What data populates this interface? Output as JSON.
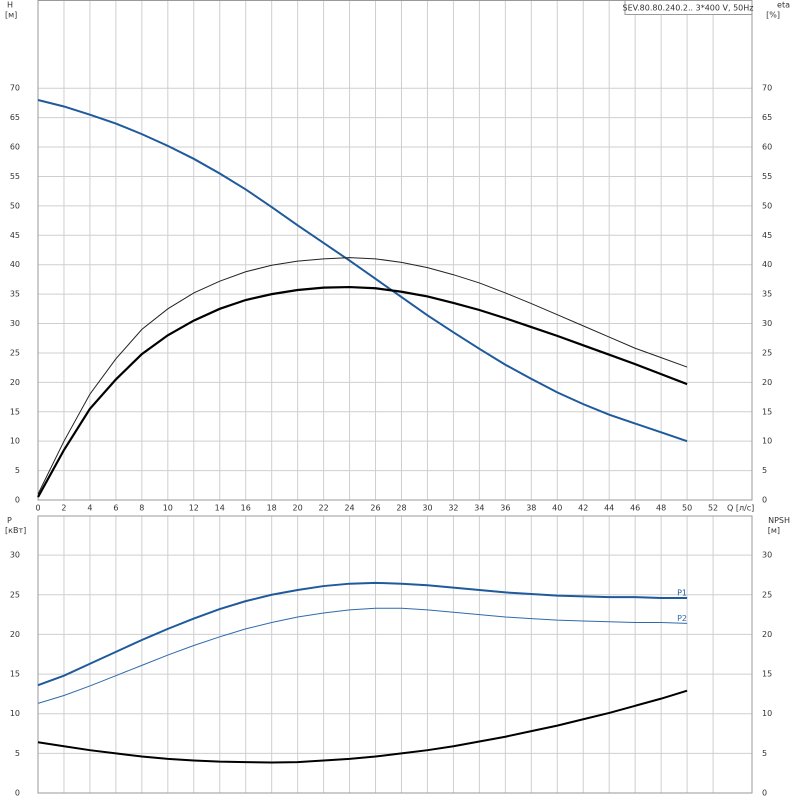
{
  "chart_data": [
    {
      "type": "line",
      "title": "SEV.80.80.240.2.. 3*400 V, 50Hz",
      "y_label": "H",
      "y_unit": "[м]",
      "y2_label": "eta",
      "y2_unit": "[%]",
      "x_label": "Q [л/с]",
      "xlim": [
        0,
        55
      ],
      "xticks": [
        0,
        2,
        4,
        6,
        8,
        10,
        12,
        14,
        16,
        18,
        20,
        22,
        24,
        26,
        28,
        30,
        32,
        34,
        36,
        38,
        40,
        42,
        44,
        46,
        48,
        50,
        52
      ],
      "ylim": [
        0,
        85
      ],
      "yticks": [
        0,
        5,
        10,
        15,
        20,
        25,
        30,
        35,
        40,
        45,
        50,
        55,
        60,
        65,
        70
      ],
      "y2lim": [
        0,
        85
      ],
      "y2ticks": [
        0,
        5,
        10,
        15,
        20,
        25,
        30,
        35,
        40,
        45,
        50,
        55,
        60,
        65,
        70
      ],
      "grid": true,
      "x": [
        0,
        2,
        4,
        6,
        8,
        10,
        12,
        14,
        16,
        18,
        20,
        22,
        24,
        26,
        28,
        30,
        32,
        34,
        36,
        38,
        40,
        42,
        44,
        46,
        48,
        50
      ],
      "series": [
        {
          "color": "#1f5a9c",
          "width": 2,
          "values": [
            68,
            66.9,
            65.5,
            64,
            62.2,
            60.2,
            58,
            55.5,
            52.8,
            49.8,
            46.7,
            43.7,
            40.7,
            37.6,
            34.5,
            31.4,
            28.5,
            25.7,
            23,
            20.6,
            18.3,
            16.3,
            14.5,
            13,
            11.5,
            10
          ]
        },
        {
          "color": "#222222",
          "width": 1,
          "axis": "y2",
          "values": [
            1,
            10,
            18,
            24,
            29,
            32.5,
            35.2,
            37.2,
            38.8,
            39.9,
            40.6,
            41,
            41.2,
            41,
            40.4,
            39.5,
            38.3,
            36.9,
            35.2,
            33.4,
            31.5,
            29.6,
            27.7,
            25.8,
            24.2,
            22.6
          ]
        },
        {
          "color": "#000000",
          "width": 2.2,
          "axis": "y2",
          "values": [
            0.5,
            8.5,
            15.5,
            20.5,
            24.8,
            28,
            30.5,
            32.5,
            34,
            35,
            35.7,
            36.1,
            36.2,
            36,
            35.4,
            34.6,
            33.5,
            32.3,
            30.9,
            29.4,
            27.9,
            26.3,
            24.7,
            23.1,
            21.4,
            19.7
          ]
        }
      ]
    },
    {
      "type": "line",
      "y_label": "P",
      "y_unit": "[кВт]",
      "y2_label": "NPSH",
      "y2_unit": "[м]",
      "xlim": [
        0,
        55
      ],
      "xticks": [
        0,
        2,
        4,
        6,
        8,
        10,
        12,
        14,
        16,
        18,
        20,
        22,
        24,
        26,
        28,
        30,
        32,
        34,
        36,
        38,
        40,
        42,
        44,
        46,
        48,
        50,
        52
      ],
      "ylim": [
        0,
        35
      ],
      "yticks": [
        0,
        5,
        10,
        15,
        20,
        25,
        30
      ],
      "y2lim": [
        0,
        35
      ],
      "y2ticks": [
        0,
        5,
        10,
        15,
        20,
        25,
        30
      ],
      "grid": true,
      "x": [
        0,
        2,
        4,
        6,
        8,
        10,
        12,
        14,
        16,
        18,
        20,
        22,
        24,
        26,
        28,
        30,
        32,
        34,
        36,
        38,
        40,
        42,
        44,
        46,
        48,
        50
      ],
      "series": [
        {
          "name": "P1",
          "color": "#1f5a9c",
          "width": 2,
          "values": [
            13.6,
            14.8,
            16.3,
            17.8,
            19.3,
            20.7,
            22,
            23.2,
            24.2,
            25,
            25.6,
            26.1,
            26.4,
            26.5,
            26.4,
            26.2,
            25.9,
            25.6,
            25.3,
            25.1,
            24.9,
            24.8,
            24.7,
            24.7,
            24.6,
            24.6
          ]
        },
        {
          "name": "P2",
          "color": "#2f6aac",
          "width": 1,
          "values": [
            11.3,
            12.3,
            13.5,
            14.8,
            16.1,
            17.4,
            18.6,
            19.7,
            20.7,
            21.5,
            22.2,
            22.7,
            23.1,
            23.3,
            23.3,
            23.1,
            22.8,
            22.5,
            22.2,
            22,
            21.8,
            21.7,
            21.6,
            21.5,
            21.5,
            21.4
          ]
        },
        {
          "color": "#000000",
          "width": 2,
          "axis": "y2",
          "values": [
            6.4,
            5.9,
            5.4,
            5,
            4.6,
            4.3,
            4.1,
            3.95,
            3.9,
            3.85,
            3.9,
            4.1,
            4.3,
            4.6,
            5,
            5.4,
            5.9,
            6.5,
            7.1,
            7.8,
            8.5,
            9.3,
            10.1,
            11,
            11.9,
            12.9
          ]
        }
      ]
    }
  ]
}
